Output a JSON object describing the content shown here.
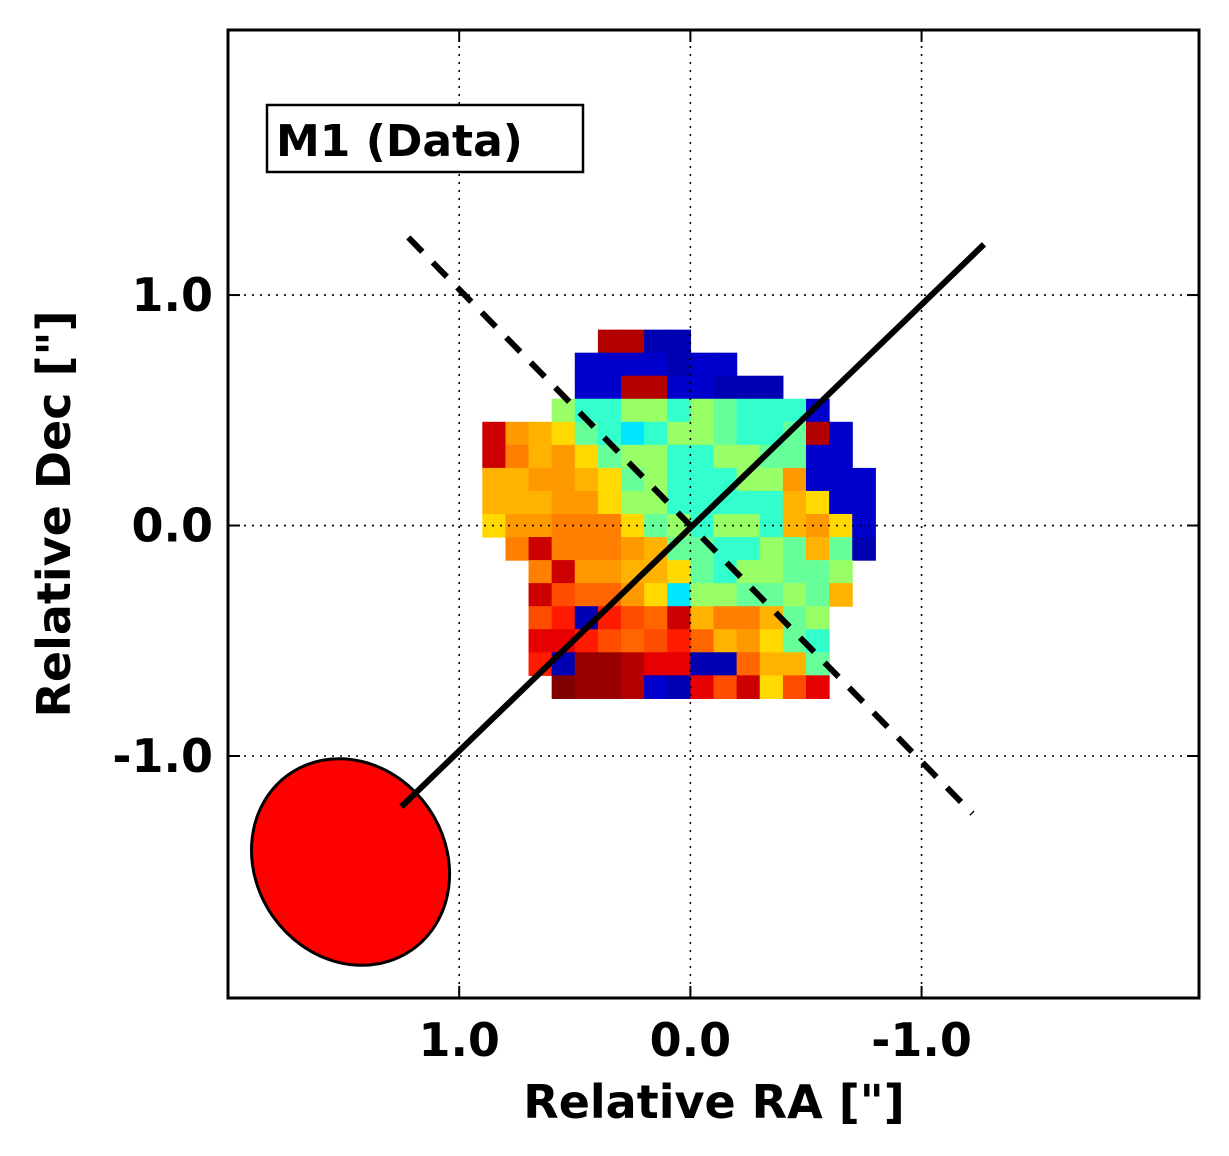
{
  "chart_data": {
    "type": "heatmap",
    "title": "",
    "panel_label": "M1 (Data)",
    "xlabel": "Relative RA [\"]",
    "ylabel": "Relative Dec [\"]",
    "xlim": [
      2.0,
      -2.2
    ],
    "ylim": [
      -2.05,
      2.15
    ],
    "x_inverted": true,
    "xticks": [
      {
        "value": 1.0,
        "label": "1.0"
      },
      {
        "value": 0.0,
        "label": "0.0"
      },
      {
        "value": -1.0,
        "label": "-1.0"
      }
    ],
    "yticks": [
      {
        "value": 1.0,
        "label": "1.0"
      },
      {
        "value": 0.0,
        "label": "0.0"
      },
      {
        "value": -1.0,
        "label": "-1.0"
      }
    ],
    "grid": true,
    "grid_style": "dotted",
    "colormap": "jet",
    "pixel_size_arcsec": 0.1,
    "pixel_grid": {
      "ra_start": 0.85,
      "ra_step": -0.1,
      "dec_start": 0.8,
      "dec_step": -0.1,
      "rows": [
        ".....DDFF........",
        "....EEEEFEE......",
        "....EEDDEEFFF....",
        "...QRRQQRQPRRRE..",
        "KMNOPRSRQQPRRPDE.",
        "KLNMOPQQRRQQPPEE.",
        "NNMMNOPQRRRQQMEEE",
        "NNNMMOQQRRRRRNOEE",
        "OMMLLLOPQRQQRNMOE",
        ".LKLLLMNPPRRQPNPF",
        "..LKMMNNOPRQQPPQ.",
        "..KIJJMOSQQPPQPN.",
        "..IHFHIJKNLLNPQ..",
        "..GGHIJIHJNMOPR..",
        "..HFCCDGGFFJNNP..",
        "...BCCDEFGIKOIG.."
      ],
      "color_levels": {
        ".": null,
        "A": "#7f0000",
        "B": "#800000",
        "C": "#990000",
        "D": "#b30000",
        "E": "#0000cc",
        "F": "#0000b3",
        "G": "#e60000",
        "H": "#ff1a00",
        "I": "#ff4d00",
        "J": "#ff6600",
        "K": "#cc0000",
        "L": "#ff8000",
        "M": "#ff9900",
        "N": "#ffb300",
        "O": "#ffd900",
        "P": "#66ff99",
        "Q": "#99ff66",
        "R": "#33ffcc",
        "S": "#00e6ff"
      }
    },
    "lines": [
      {
        "name": "major-axis",
        "style": "solid",
        "from": [
          1.25,
          -1.22
        ],
        "to": [
          -1.27,
          1.22
        ]
      },
      {
        "name": "minor-axis",
        "style": "dashed",
        "from": [
          1.22,
          1.25
        ],
        "to": [
          -1.22,
          -1.25
        ]
      }
    ],
    "beam": {
      "center_ra": 1.47,
      "center_dec": -1.46,
      "major_arcsec": 0.93,
      "minor_arcsec": 0.82,
      "pa_deg": -35,
      "color": "#ff0000"
    }
  }
}
